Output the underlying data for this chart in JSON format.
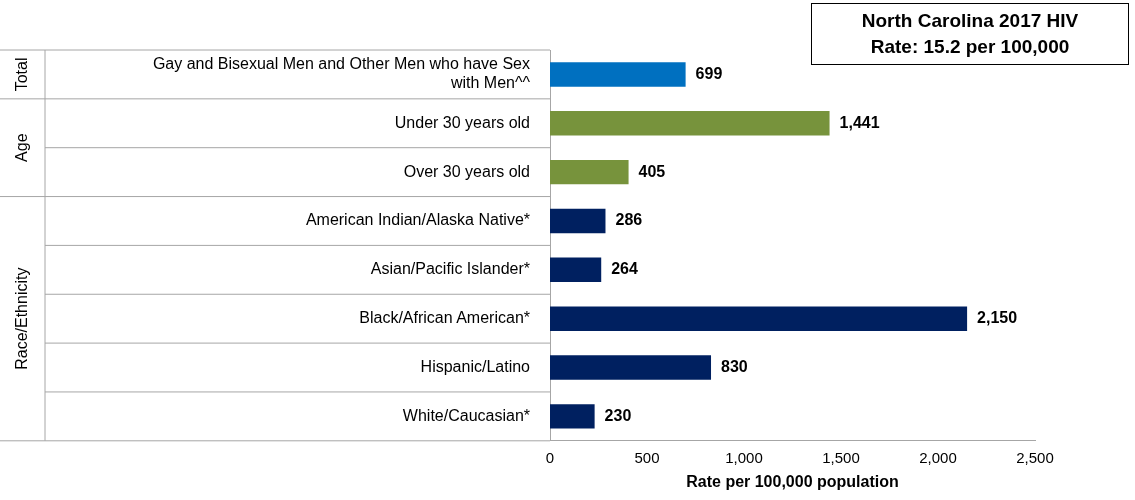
{
  "chart_data": {
    "type": "bar",
    "orientation": "horizontal",
    "title": "North Carolina 2017 HIV",
    "subtitle": "Rate: 15.2 per 100,000",
    "xlabel": "Rate per 100,000 population",
    "categories": [
      "Gay and Bisexual Men and Other Men who have Sex with Men^^",
      "Under 30 years old",
      "Over 30 years old",
      "American Indian/Alaska Native*",
      "Asian/Pacific Islander*",
      "Black/African American*",
      "Hispanic/Latino",
      "White/Caucasian*"
    ],
    "values": [
      699,
      1441,
      405,
      286,
      264,
      2150,
      830,
      230
    ],
    "value_labels": [
      "699",
      "1,441",
      "405",
      "286",
      "264",
      "2,150",
      "830",
      "230"
    ],
    "colors": [
      "#0070c0",
      "#77933c",
      "#77933c",
      "#002060",
      "#002060",
      "#002060",
      "#002060",
      "#002060"
    ],
    "xlim": [
      0,
      2500
    ],
    "xticks": [
      0,
      500,
      {
        "value": 1000,
        "label": "1,000"
      },
      {
        "value": 1500,
        "label": "1,500"
      },
      {
        "value": 2000,
        "label": "2,000"
      },
      {
        "value": 2500,
        "label": "2,500"
      }
    ],
    "annotations": [
      "Total",
      "Age",
      "Race/Ethnicity"
    ],
    "grid": false,
    "legend": false
  }
}
